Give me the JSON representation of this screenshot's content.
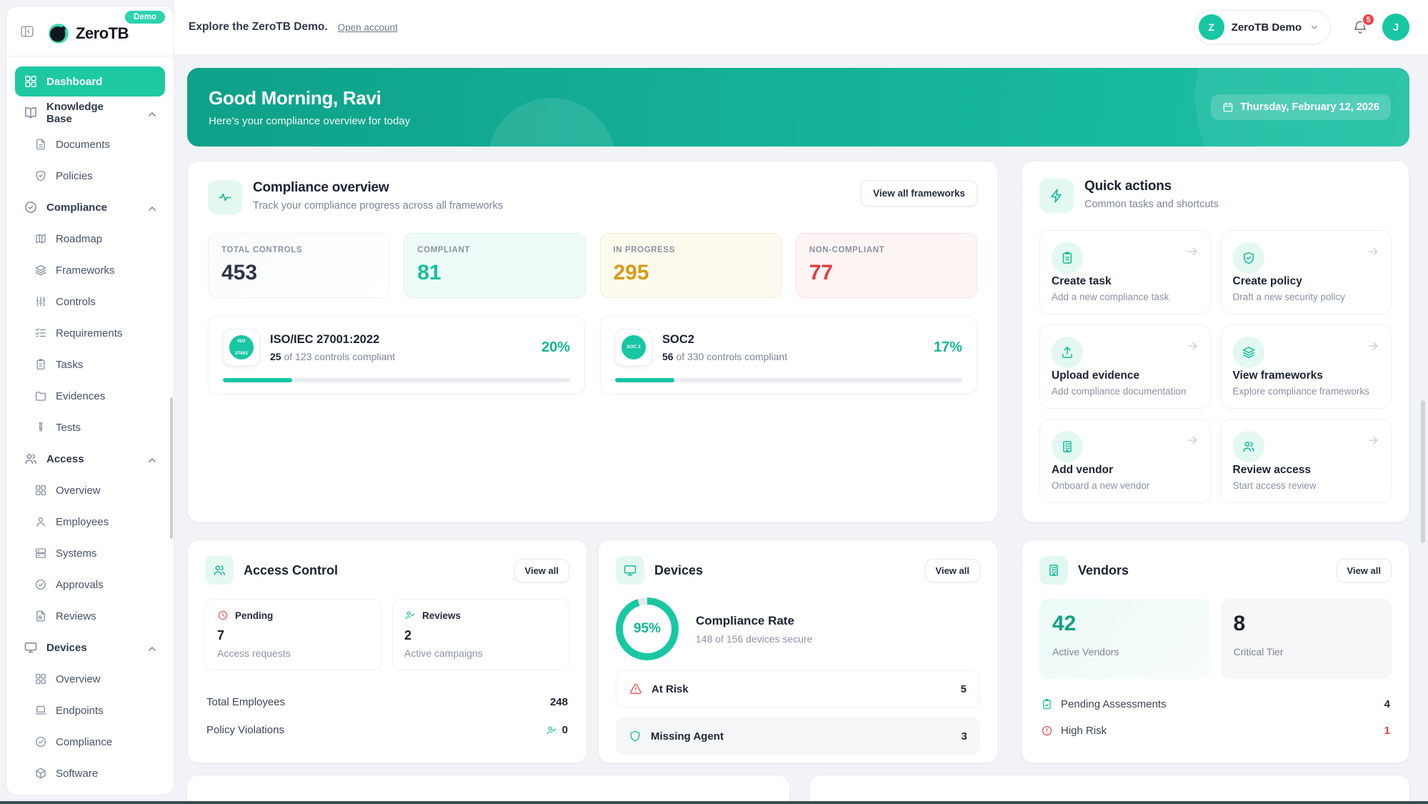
{
  "colors": {
    "accent": "#17c6a3",
    "warning": "#d89a18",
    "danger": "#e23e3e",
    "banner_start": "#0fa189",
    "banner_end": "#1dc0a4"
  },
  "brand": {
    "name": "ZeroTB",
    "badge": "Demo"
  },
  "topbar": {
    "message": "Explore the ZeroTB Demo.",
    "link": "Open account",
    "account": {
      "initial": "Z",
      "name": "ZeroTB Demo"
    },
    "notifications": "5",
    "avatar_initial": "J"
  },
  "banner": {
    "greeting": "Good Morning, Ravi",
    "subtitle": "Here's your compliance overview for today",
    "date": "Thursday, February 12, 2026"
  },
  "sidebar": {
    "items": [
      {
        "label": "Dashboard",
        "icon": "grid",
        "type": "item",
        "active": true
      },
      {
        "label": "Knowledge Base",
        "icon": "book-open",
        "type": "section"
      },
      {
        "label": "Documents",
        "icon": "file-text",
        "type": "sub"
      },
      {
        "label": "Policies",
        "icon": "shield-check",
        "type": "sub"
      },
      {
        "label": "Compliance",
        "icon": "badge-check",
        "type": "section"
      },
      {
        "label": "Roadmap",
        "icon": "map",
        "type": "sub"
      },
      {
        "label": "Frameworks",
        "icon": "layers",
        "type": "sub"
      },
      {
        "label": "Controls",
        "icon": "sliders",
        "type": "sub"
      },
      {
        "label": "Requirements",
        "icon": "list-checks",
        "type": "sub"
      },
      {
        "label": "Tasks",
        "icon": "clipboard-list",
        "type": "sub"
      },
      {
        "label": "Evidences",
        "icon": "folder",
        "type": "sub"
      },
      {
        "label": "Tests",
        "icon": "test-tube",
        "type": "sub"
      },
      {
        "label": "Access",
        "icon": "users",
        "type": "section"
      },
      {
        "label": "Overview",
        "icon": "grid",
        "type": "sub"
      },
      {
        "label": "Employees",
        "icon": "user",
        "type": "sub"
      },
      {
        "label": "Systems",
        "icon": "server",
        "type": "sub"
      },
      {
        "label": "Approvals",
        "icon": "check-circle",
        "type": "sub"
      },
      {
        "label": "Reviews",
        "icon": "file-search",
        "type": "sub"
      },
      {
        "label": "Devices",
        "icon": "monitor",
        "type": "section"
      },
      {
        "label": "Overview",
        "icon": "grid",
        "type": "sub"
      },
      {
        "label": "Endpoints",
        "icon": "laptop",
        "type": "sub"
      },
      {
        "label": "Compliance",
        "icon": "badge-check",
        "type": "sub"
      },
      {
        "label": "Software",
        "icon": "package",
        "type": "sub"
      }
    ]
  },
  "overview": {
    "title": "Compliance overview",
    "subtitle": "Track your compliance progress across all frameworks",
    "button": "View all frameworks",
    "stats": [
      {
        "label": "TOTAL CONTROLS",
        "value": "453",
        "tone": "default"
      },
      {
        "label": "COMPLIANT",
        "value": "81",
        "tone": "teal"
      },
      {
        "label": "IN PROGRESS",
        "value": "295",
        "tone": "amber"
      },
      {
        "label": "NON-COMPLIANT",
        "value": "77",
        "tone": "red"
      }
    ],
    "frameworks": [
      {
        "badge_lines": [
          "ISO",
          "27001"
        ],
        "name": "ISO/IEC 27001:2022",
        "count": "25",
        "detail": "of 123 controls compliant",
        "percent": "20%",
        "progress": 20
      },
      {
        "badge_lines": [
          "SOC 2"
        ],
        "name": "SOC2",
        "count": "56",
        "detail": "of 330 controls compliant",
        "percent": "17%",
        "progress": 17
      }
    ]
  },
  "quick_actions": {
    "title": "Quick actions",
    "subtitle": "Common tasks and shortcuts",
    "items": [
      {
        "icon": "clipboard",
        "label": "Create task",
        "desc": "Add a new compliance task"
      },
      {
        "icon": "shield-check",
        "label": "Create policy",
        "desc": "Draft a new security policy"
      },
      {
        "icon": "upload",
        "label": "Upload evidence",
        "desc": "Add compliance documentation"
      },
      {
        "icon": "layers",
        "label": "View frameworks",
        "desc": "Explore compliance frameworks"
      },
      {
        "icon": "building",
        "label": "Add vendor",
        "desc": "Onboard a new vendor"
      },
      {
        "icon": "users",
        "label": "Review access",
        "desc": "Start access review"
      }
    ]
  },
  "access": {
    "title": "Access Control",
    "view_all": "View all",
    "pending": {
      "label": "Pending",
      "value": "7",
      "caption": "Access requests",
      "icon": "clock"
    },
    "reviews": {
      "label": "Reviews",
      "value": "2",
      "caption": "Active campaigns",
      "icon": "user-check"
    },
    "rows": [
      {
        "label": "Total Employees",
        "value": "248"
      },
      {
        "label": "Policy Violations",
        "value": "0",
        "icon": "user-check"
      }
    ]
  },
  "devices": {
    "title": "Devices",
    "view_all": "View all",
    "donut": {
      "percent": "95%",
      "value": 95
    },
    "rate_label": "Compliance Rate",
    "rate_caption": "148 of 156 devices secure",
    "rows": [
      {
        "icon": "alert-triangle",
        "label": "At Risk",
        "value": "5",
        "tone": "red",
        "style": "bordered"
      },
      {
        "icon": "shield",
        "label": "Missing Agent",
        "value": "3",
        "tone": "teal",
        "style": "filled"
      }
    ]
  },
  "vendors": {
    "title": "Vendors",
    "view_all": "View all",
    "stats": [
      {
        "value": "42",
        "label": "Active Vendors",
        "tone": "teal"
      },
      {
        "value": "8",
        "label": "Critical Tier",
        "tone": "plain"
      }
    ],
    "rows": [
      {
        "icon": "clipboard-check",
        "label": "Pending Assessments",
        "value": "4",
        "tone": "default"
      },
      {
        "icon": "alert-circle",
        "label": "High Risk",
        "value": "1",
        "tone": "red"
      }
    ]
  }
}
